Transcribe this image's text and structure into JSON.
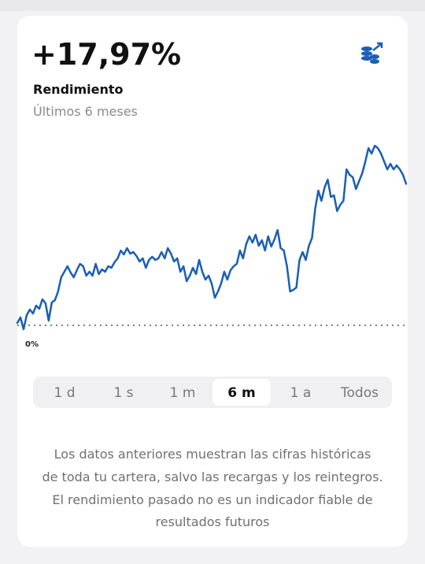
{
  "header": {
    "value": "+17,97%",
    "label": "Rendimiento",
    "period": "Últimos 6 meses"
  },
  "chart_data": {
    "type": "line",
    "color": "#1a5fb4",
    "ylim": [
      -1,
      25
    ],
    "yticks": [
      {
        "value": 0,
        "label": "0%"
      }
    ],
    "values": [
      0.3,
      1.0,
      -0.5,
      1.3,
      2.0,
      1.5,
      2.5,
      2.1,
      3.3,
      2.8,
      0.6,
      2.9,
      3.2,
      4.3,
      6.1,
      6.8,
      7.5,
      6.7,
      6.1,
      7.0,
      7.8,
      7.5,
      6.3,
      6.8,
      6.3,
      7.8,
      6.5,
      7.1,
      6.8,
      7.5,
      7.3,
      8.0,
      8.5,
      9.5,
      9.0,
      9.8,
      9.1,
      9.3,
      8.8,
      8.1,
      8.5,
      7.3,
      8.3,
      8.7,
      8.3,
      8.5,
      9.3,
      8.5,
      9.8,
      9.1,
      8.1,
      8.5,
      6.8,
      7.5,
      5.6,
      6.3,
      7.3,
      6.5,
      8.3,
      6.8,
      5.8,
      6.3,
      5.3,
      3.5,
      4.3,
      5.3,
      6.8,
      5.8,
      7.0,
      7.5,
      7.8,
      9.5,
      8.5,
      10.3,
      11.3,
      10.5,
      11.5,
      10.1,
      10.8,
      9.5,
      11.3,
      10.0,
      10.9,
      12.1,
      9.8,
      9.5,
      7.5,
      4.3,
      4.5,
      4.8,
      8.3,
      9.3,
      8.3,
      10.1,
      11.1,
      14.8,
      17.1,
      15.8,
      17.5,
      18.5,
      16.3,
      16.5,
      14.5,
      15.3,
      15.8,
      19.8,
      19.1,
      18.8,
      17.3,
      18.3,
      19.3,
      20.8,
      22.5,
      21.8,
      22.8,
      22.5,
      21.8,
      20.8,
      19.8,
      20.5,
      19.8,
      20.3,
      19.8,
      19.1,
      17.97
    ]
  },
  "tabs": [
    "1 d",
    "1 s",
    "1 m",
    "6 m",
    "1 a",
    "Todos"
  ],
  "disclaimer": [
    "Los datos anteriores muestran las cifras históricas",
    "de toda tu cartera, salvo las recargas y los reintegros.",
    "El rendimiento pasado no es un indicador fiable de",
    "resultados futuros"
  ]
}
